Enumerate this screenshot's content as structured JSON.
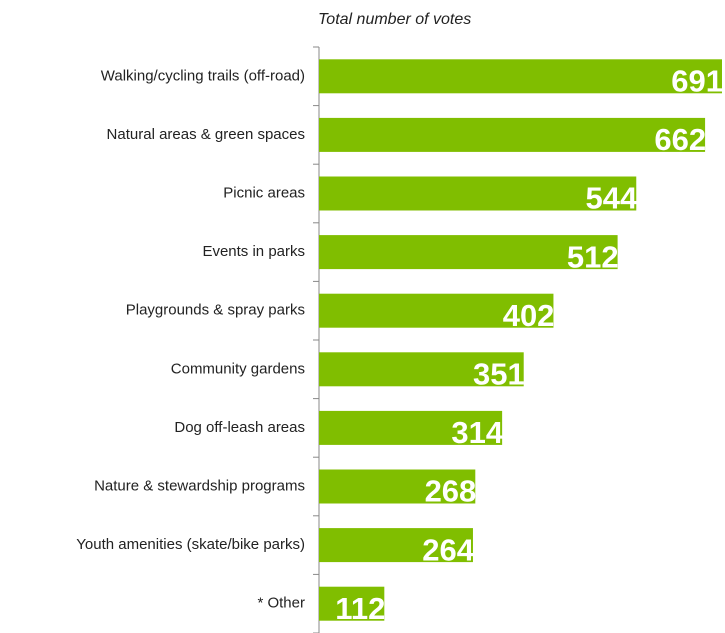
{
  "chart_data": {
    "type": "bar",
    "orientation": "horizontal",
    "title": "Total number of votes",
    "categories": [
      "Walking/cycling trails (off-road)",
      "Natural areas & green spaces",
      "Picnic areas",
      "Events in parks",
      "Playgrounds & spray parks",
      "Community gardens",
      "Dog off-leash areas",
      "Nature & stewardship programs",
      "Youth amenities (skate/bike parks)",
      "* Other"
    ],
    "values": [
      691,
      662,
      544,
      512,
      402,
      351,
      314,
      268,
      264,
      112
    ],
    "color": "#80be00"
  }
}
